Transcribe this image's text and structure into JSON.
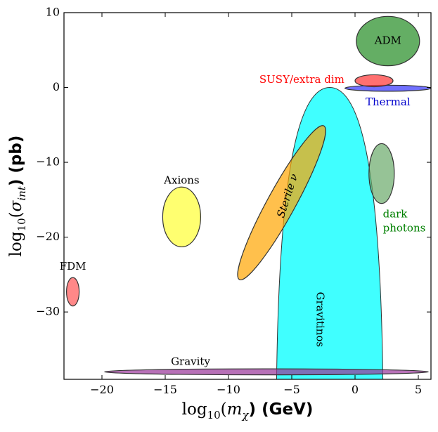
{
  "chart_data": {
    "type": "scatter",
    "title": "",
    "xlabel_parts": [
      "log",
      "10",
      "(",
      "m",
      "χ",
      ") (GeV)"
    ],
    "ylabel_parts": [
      "log",
      "10",
      "(",
      "σ",
      "int",
      ") (pb)"
    ],
    "xlim": [
      -23,
      6
    ],
    "ylim": [
      -39,
      10
    ],
    "xticks": [
      -20,
      -15,
      -10,
      -5,
      0,
      5
    ],
    "xtick_labels": [
      "−20",
      "−15",
      "−10",
      "−5",
      "0",
      "5"
    ],
    "yticks": [
      10,
      0,
      -10,
      -20,
      -30
    ],
    "ytick_labels": [
      "10",
      "0",
      "−10",
      "−20",
      "−30"
    ],
    "grid": false,
    "legend": "none",
    "regions": [
      {
        "name": "FDM",
        "shape": "ellipse",
        "cx": -22.3,
        "cy": -27.3,
        "rx": 0.5,
        "ry": 1.9,
        "angle_deg": 0,
        "color": "#ff5555",
        "label_color": "#000000",
        "label_x": -22.3,
        "label_y": -24.0
      },
      {
        "name": "Axions",
        "shape": "ellipse",
        "cx": -13.7,
        "cy": -17.3,
        "rx": 1.5,
        "ry": 4.0,
        "angle_deg": 0,
        "color": "#ffff33",
        "label_color": "#000000",
        "label_x": -13.7,
        "label_y": -12.5
      },
      {
        "name": "Sterile ν",
        "shape": "ellipse",
        "cx": -5.8,
        "cy": -15.4,
        "rx": 10.8,
        "ry": 1.1,
        "angle_deg": 72,
        "color": "#ffa500",
        "label_color": "#000000",
        "label_x": -5.3,
        "label_y": -14.5,
        "label_rotate_deg": 72
      },
      {
        "name": "ADM",
        "shape": "ellipse",
        "cx": 2.6,
        "cy": 6.2,
        "rx": 2.5,
        "ry": 3.3,
        "angle_deg": 0,
        "color": "#228b22",
        "label_color": "#000000",
        "label_x": 2.6,
        "label_y": 6.2
      },
      {
        "name": "SUSY/extra dim",
        "shape": "ellipse",
        "cx": 1.5,
        "cy": 0.9,
        "rx": 1.5,
        "ry": 0.8,
        "angle_deg": 0,
        "color": "#ff3333",
        "label_color": "#ff0000",
        "label_x": -4.2,
        "label_y": 1.0
      },
      {
        "name": "Thermal",
        "shape": "ellipse",
        "cx": 2.6,
        "cy": -0.1,
        "rx": 3.4,
        "ry": 0.4,
        "angle_deg": 0,
        "color": "#3333ff",
        "label_color": "#0000cc",
        "label_x": 2.6,
        "label_y": -2.0
      },
      {
        "name": "dark photons",
        "shape": "ellipse",
        "cx": 2.1,
        "cy": -11.5,
        "rx": 1.0,
        "ry": 4.0,
        "angle_deg": 0,
        "color": "#6aaa6a",
        "label_color": "#008000",
        "label_lines": [
          "dark",
          "photons"
        ],
        "label_x": 2.2,
        "label_y": -17.0
      },
      {
        "name": "Gravitinos",
        "shape": "parabola",
        "x_left": -6.2,
        "x_peak": -2.0,
        "x_right": 2.2,
        "y_peak": 0.0,
        "y_bottom": -39,
        "color": "#00ffff",
        "label_color": "#000000",
        "label_x": -2.8,
        "label_y": -31.0,
        "label_rotate_deg": -90
      },
      {
        "name": "Gravity",
        "shape": "ellipse",
        "cx": -7.0,
        "cy": -38.0,
        "rx": 12.8,
        "ry": 0.4,
        "angle_deg": 0,
        "color": "#993399",
        "label_color": "#000000",
        "label_x": -13.0,
        "label_y": -36.7
      }
    ]
  }
}
